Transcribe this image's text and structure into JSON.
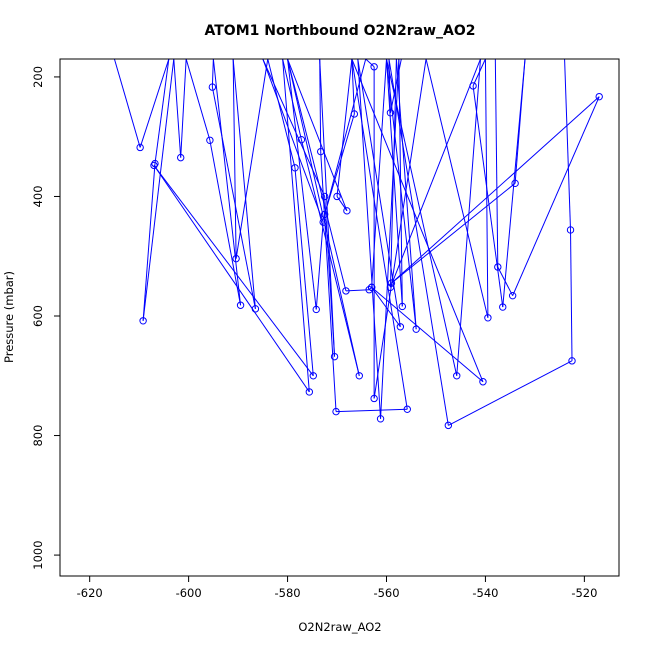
{
  "chart_data": {
    "type": "line",
    "title": "ATOM1 Northbound O2N2raw_AO2",
    "xlabel": "O2N2raw_AO2",
    "ylabel": "Pressure (mbar)",
    "xlim": [
      -626,
      -513
    ],
    "ylim": [
      1035,
      170
    ],
    "y_reversed": true,
    "xticks": [
      -620,
      -600,
      -580,
      -560,
      -540,
      -520
    ],
    "yticks": [
      200,
      400,
      600,
      800,
      1000
    ],
    "grid": false,
    "marker": "open-circle",
    "colors": {
      "series": "#0000ff",
      "axes": "#000000",
      "background": "#ffffff"
    },
    "series": [
      {
        "points": [
          [
            -615,
            170
          ],
          [
            -609.8,
            318
          ],
          [
            -604,
            170
          ],
          [
            -606.8,
            345
          ],
          [
            -609.2,
            608
          ],
          [
            -603,
            170
          ],
          [
            -601.6,
            335
          ],
          [
            -600.5,
            170
          ],
          [
            -595.7,
            306
          ],
          [
            -589.5,
            582
          ],
          [
            -595,
            170
          ],
          [
            -595.2,
            217
          ],
          [
            -586.5,
            588
          ],
          [
            -591,
            170
          ],
          [
            -590.4,
            504
          ],
          [
            -584,
            170
          ],
          [
            -578.5,
            352
          ],
          [
            -574.8,
            700
          ],
          [
            -607,
            348
          ],
          [
            -575.6,
            727
          ],
          [
            -581,
            170
          ],
          [
            -577.2,
            305
          ],
          [
            -565.5,
            700
          ],
          [
            -580,
            170
          ],
          [
            -574.2,
            589
          ],
          [
            -572.8,
            443
          ],
          [
            -585,
            170
          ],
          [
            -572.5,
            400
          ],
          [
            -570.5,
            668
          ],
          [
            -573.5,
            170
          ],
          [
            -573.3,
            325
          ],
          [
            -570.2,
            760
          ],
          [
            -555.8,
            756
          ],
          [
            -567,
            170
          ],
          [
            -570,
            400
          ],
          [
            -568,
            424
          ],
          [
            -580,
            170
          ],
          [
            -568.2,
            558
          ],
          [
            -563.5,
            556
          ],
          [
            -563,
            552
          ],
          [
            -557.2,
            618
          ],
          [
            -565.8,
            170
          ],
          [
            -561.2,
            772
          ],
          [
            -557.5,
            170
          ],
          [
            -556.8,
            584
          ],
          [
            -560,
            170
          ],
          [
            -554,
            622
          ],
          [
            -558,
            170
          ],
          [
            -559.2,
            552
          ],
          [
            -541,
            170
          ],
          [
            -545.8,
            700
          ],
          [
            -560,
            170
          ],
          [
            -563,
            552
          ],
          [
            -540.5,
            710
          ],
          [
            -567,
            170
          ],
          [
            -566.5,
            262
          ],
          [
            -572.5,
            430
          ],
          [
            -564.2,
            170
          ],
          [
            -562.5,
            183
          ],
          [
            -562.5,
            738
          ],
          [
            -552,
            170
          ],
          [
            -539.5,
            603
          ],
          [
            -540,
            170
          ],
          [
            -542.5,
            215
          ],
          [
            -536.5,
            585
          ],
          [
            -532,
            170
          ],
          [
            -534,
            378
          ],
          [
            -559,
            545
          ],
          [
            -517,
            233
          ],
          [
            -534.5,
            566
          ],
          [
            -537.5,
            518
          ],
          [
            -538,
            170
          ],
          [
            -524,
            170
          ],
          [
            -522.8,
            456
          ],
          [
            -522.5,
            675
          ],
          [
            -547.5,
            783
          ],
          [
            -559.5,
            170
          ],
          [
            -559.2,
            260
          ],
          [
            -557,
            170
          ]
        ]
      }
    ]
  }
}
